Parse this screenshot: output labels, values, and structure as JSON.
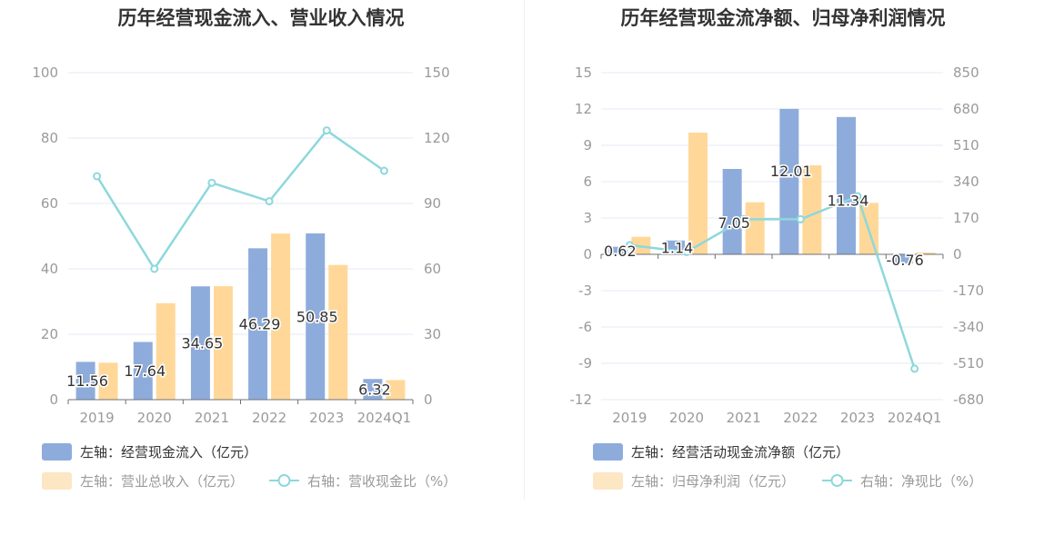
{
  "colors": {
    "blue_bar": "#8eacdb",
    "orange_bar": "#ffd899",
    "line": "#8dd8dc",
    "axis_text": "#9a9a9a",
    "grid": "#e4e8f4",
    "title": "#333333",
    "legend_text": "#333333",
    "legend_text_muted": "#9a9a9a",
    "legend_orange_muted": "#fde6c3"
  },
  "left_chart": {
    "title": "历年经营现金流入、营业收入情况",
    "legend": [
      {
        "label": "左轴：经营现金流入（亿元）",
        "icon": "blue-bar-swatch"
      },
      {
        "label": "左轴：营业总收入（亿元）",
        "icon": "orange-bar-swatch"
      },
      {
        "label": "右轴：营收现金比（%）",
        "icon": "line-circle-icon"
      }
    ]
  },
  "right_chart": {
    "title": "历年经营现金流净额、归母净利润情况",
    "legend": [
      {
        "label": "左轴：经营活动现金流净额（亿元）",
        "icon": "blue-bar-swatch"
      },
      {
        "label": "左轴：归母净利润（亿元）",
        "icon": "orange-bar-swatch"
      },
      {
        "label": "右轴：净现比（%）",
        "icon": "line-circle-icon"
      }
    ]
  },
  "chart_data": [
    {
      "type": "bar",
      "title": "历年经营现金流入、营业收入情况",
      "categories": [
        "2019",
        "2020",
        "2021",
        "2022",
        "2023",
        "2024Q1"
      ],
      "series": [
        {
          "name": "左轴：经营现金流入（亿元）",
          "axis": "left",
          "type": "bar",
          "values": [
            11.56,
            17.64,
            34.65,
            46.29,
            50.85,
            6.32
          ],
          "data_labels": [
            "11.56",
            "17.64",
            "34.65",
            "46.29",
            "50.85",
            "6.32"
          ]
        },
        {
          "name": "左轴：营业总收入（亿元）",
          "axis": "left",
          "type": "bar",
          "values": [
            11.3,
            29.5,
            34.7,
            50.8,
            41.2,
            6.0
          ]
        },
        {
          "name": "右轴：营收现金比（%）",
          "axis": "right",
          "type": "line",
          "values": [
            102.5,
            60.0,
            99.5,
            91.0,
            123.5,
            105.0
          ]
        }
      ],
      "y_left": {
        "min": 0,
        "max": 100,
        "ticks": [
          "0",
          "20",
          "40",
          "60",
          "80",
          "100"
        ]
      },
      "y_right": {
        "min": 0,
        "max": 150,
        "ticks": [
          "0",
          "30",
          "60",
          "90",
          "120",
          "150"
        ]
      },
      "grid": true,
      "legend_position": "bottom-left"
    },
    {
      "type": "bar",
      "title": "历年经营现金流净额、归母净利润情况",
      "categories": [
        "2019",
        "2020",
        "2021",
        "2022",
        "2023",
        "2024Q1"
      ],
      "series": [
        {
          "name": "左轴：经营活动现金流净额（亿元）",
          "axis": "left",
          "type": "bar",
          "values": [
            0.62,
            1.14,
            7.05,
            12.01,
            11.34,
            -0.76
          ],
          "data_labels": [
            "0.62",
            "1.14",
            "7.05",
            "12.01",
            "11.34",
            "-0.76"
          ]
        },
        {
          "name": "左轴：归母净利润（亿元）",
          "axis": "left",
          "type": "bar",
          "values": [
            1.45,
            10.05,
            4.3,
            7.35,
            4.25,
            0.15
          ]
        },
        {
          "name": "右轴：净现比（%）",
          "axis": "right",
          "type": "line",
          "values": [
            43,
            11,
            164,
            164,
            272,
            -535
          ]
        }
      ],
      "y_left": {
        "min": -12,
        "max": 15,
        "ticks": [
          "-12",
          "-9",
          "-6",
          "-3",
          "0",
          "3",
          "6",
          "9",
          "12",
          "15"
        ]
      },
      "y_right": {
        "min": -680,
        "max": 850,
        "ticks": [
          "-680",
          "-510",
          "-340",
          "-170",
          "0",
          "170",
          "340",
          "510",
          "680",
          "850"
        ]
      },
      "grid": true,
      "legend_position": "bottom-left"
    }
  ]
}
